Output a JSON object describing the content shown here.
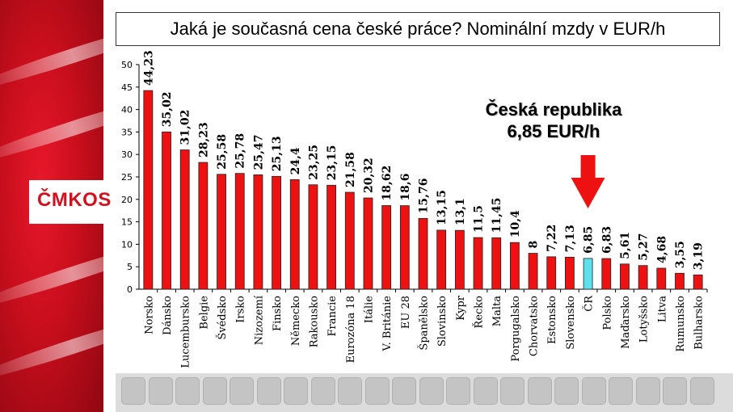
{
  "logo": {
    "text": "ČMKOS"
  },
  "chart_data": {
    "type": "bar",
    "title": "Jaká je současná cena české práce? Nominální mzdy v EUR/h",
    "categories": [
      "Norsko",
      "Dánsko",
      "Lucembursko",
      "Belgie",
      "Švédsko",
      "Irsko",
      "Nizozemí",
      "Finsko",
      "Německo",
      "Rakousko",
      "Francie",
      "Eurozóna 18",
      "Itálie",
      "V. Británie",
      "EU 28",
      "Španělsko",
      "Slovinsko",
      "Kypr",
      "Řecko",
      "Malta",
      "Porgugalsko",
      "Chorvatsko",
      "Estonsko",
      "Slovensko",
      "ČR",
      "Polsko",
      "Maďarsko",
      "Lotyšsko",
      "Litva",
      "Rumunsko",
      "Bulharsko"
    ],
    "values": [
      44.23,
      35.02,
      31.02,
      28.23,
      25.58,
      25.78,
      25.47,
      25.13,
      24.4,
      23.25,
      23.15,
      21.58,
      20.32,
      18.62,
      18.6,
      15.76,
      13.15,
      13.1,
      11.5,
      11.45,
      10.4,
      8,
      7.22,
      7.13,
      6.85,
      6.83,
      5.61,
      5.27,
      4.68,
      3.55,
      3.19
    ],
    "value_labels": [
      "44,23",
      "35,02",
      "31,02",
      "28,23",
      "25,58",
      "25,78",
      "25,47",
      "25,13",
      "24,4",
      "23,25",
      "23,15",
      "21,58",
      "20,32",
      "18,62",
      "18,6",
      "15,76",
      "13,15",
      "13,1",
      "11,5",
      "11,45",
      "10,4",
      "8",
      "7,22",
      "7,13",
      "6,85",
      "6,83",
      "5,61",
      "5,27",
      "4,68",
      "3,55",
      "3,19"
    ],
    "highlight": "ČR",
    "ylim": [
      0,
      50
    ],
    "yticks": [
      0,
      5,
      10,
      15,
      20,
      25,
      30,
      35,
      40,
      45,
      50
    ],
    "colors": {
      "bar": "#ee1111",
      "highlight": "#5ce0ee",
      "bar_edge": "#222222",
      "arrow": "#ee1111"
    },
    "annotation": {
      "line1": "Česká republika",
      "line2": "6,85 EUR/h"
    }
  }
}
